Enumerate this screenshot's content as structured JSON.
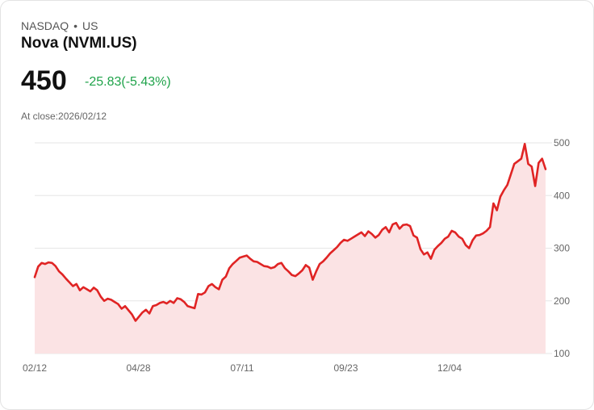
{
  "header": {
    "exchange": "NASDAQ",
    "separator": "•",
    "region": "US",
    "name": "Nova (NVMI.US)",
    "price": "450",
    "change": "-25.83(-5.43%)",
    "close_label": "At close:2026/02/12"
  },
  "colors": {
    "line": "#e02424",
    "fill": "#fbe3e4",
    "grid": "#e6e6e6",
    "change": "#1fa34a"
  },
  "chart_data": {
    "type": "area",
    "title": "Nova (NVMI.US)",
    "xlabel": "",
    "ylabel": "",
    "ylim": [
      100,
      500
    ],
    "yticks": [
      500,
      400,
      300,
      200,
      100
    ],
    "xtick_labels": [
      "02/12",
      "04/28",
      "07/11",
      "09/23",
      "12/04"
    ],
    "values": [
      245,
      265,
      272,
      270,
      273,
      272,
      266,
      256,
      250,
      242,
      235,
      228,
      232,
      220,
      226,
      222,
      218,
      225,
      220,
      208,
      200,
      204,
      202,
      198,
      194,
      185,
      190,
      182,
      174,
      162,
      170,
      178,
      183,
      176,
      190,
      192,
      196,
      198,
      195,
      200,
      196,
      205,
      203,
      198,
      190,
      188,
      186,
      213,
      212,
      216,
      228,
      232,
      226,
      222,
      240,
      246,
      262,
      270,
      276,
      282,
      284,
      286,
      280,
      275,
      274,
      270,
      266,
      265,
      262,
      264,
      270,
      272,
      262,
      256,
      249,
      247,
      252,
      258,
      268,
      263,
      240,
      256,
      270,
      275,
      282,
      290,
      296,
      302,
      310,
      316,
      314,
      318,
      322,
      326,
      330,
      323,
      332,
      327,
      320,
      325,
      335,
      340,
      330,
      345,
      348,
      337,
      344,
      345,
      342,
      324,
      320,
      298,
      288,
      292,
      280,
      297,
      304,
      310,
      318,
      322,
      333,
      330,
      322,
      318,
      306,
      300,
      315,
      324,
      325,
      328,
      333,
      340,
      385,
      372,
      398,
      410,
      420,
      440,
      460,
      465,
      470,
      498,
      460,
      455,
      418,
      462,
      470,
      450
    ]
  }
}
